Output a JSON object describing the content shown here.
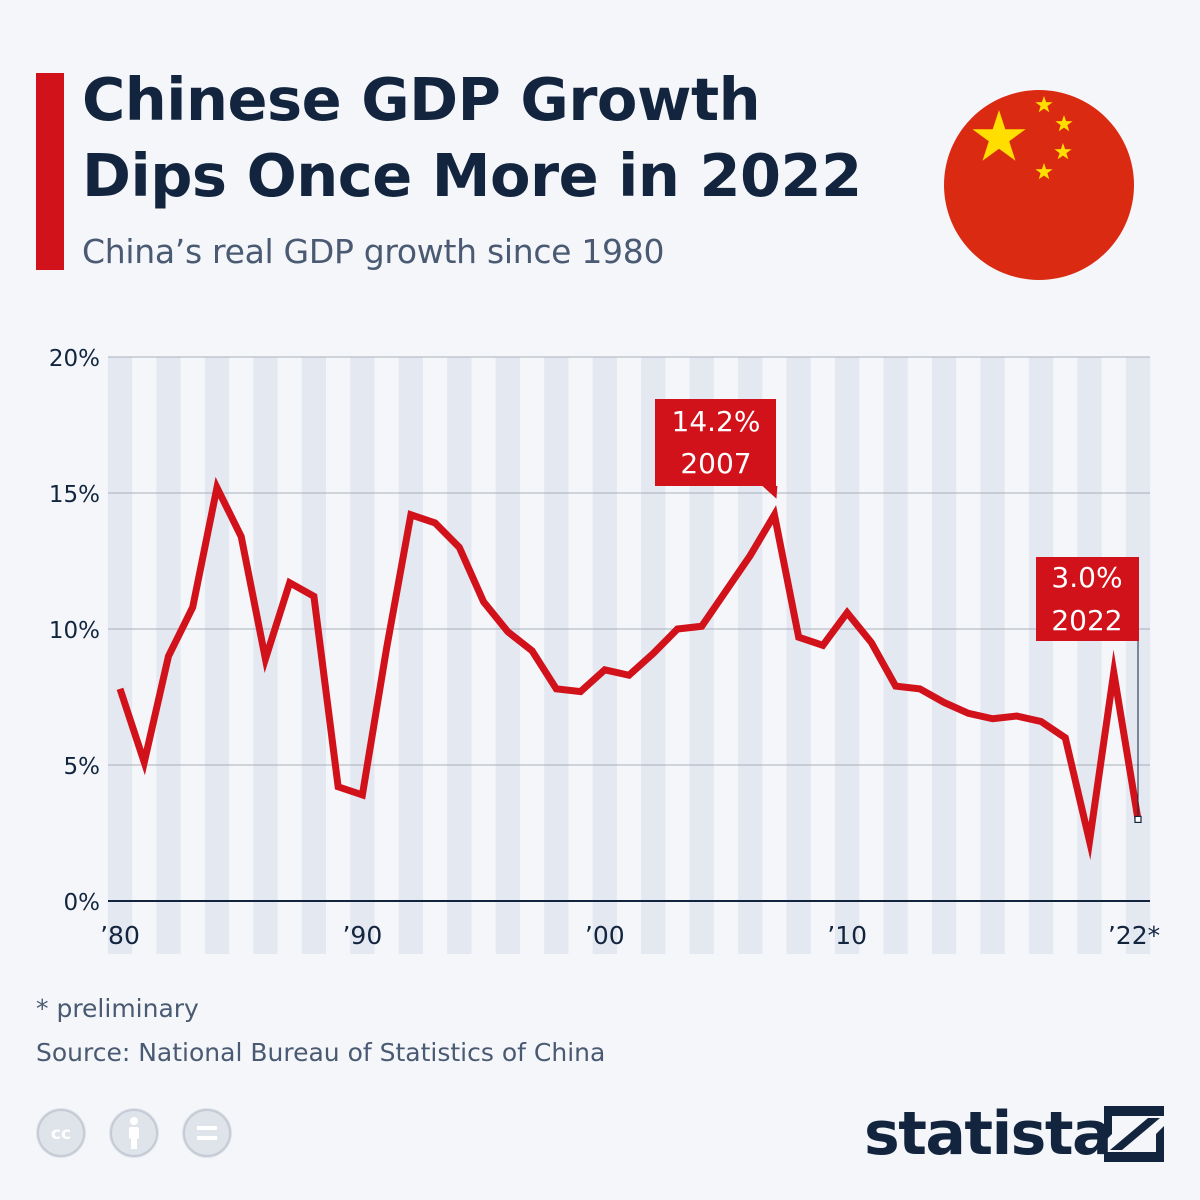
{
  "header": {
    "title_line1": "Chinese GDP Growth",
    "title_line2": "Dips Once More in 2022",
    "subtitle": "China’s real GDP growth since 1980"
  },
  "flag_icon": "china-flag-icon",
  "colors": {
    "accent": "#d2121a",
    "line": "#d2121a",
    "title": "#13253e",
    "flag_red": "#db2a12",
    "flag_star": "#ffde00",
    "band": "#e3e8f1",
    "grid": "#aab0ba"
  },
  "chart_data": {
    "type": "line",
    "title": "Chinese GDP Growth Dips Once More in 2022",
    "subtitle": "China’s real GDP growth since 1980",
    "xlabel": "",
    "ylabel": "",
    "ylim": [
      0,
      20
    ],
    "yticks": [
      "0%",
      "5%",
      "10%",
      "15%",
      "20%"
    ],
    "xticks": [
      {
        "year": 1980,
        "label": "’80"
      },
      {
        "year": 1990,
        "label": "’90"
      },
      {
        "year": 2000,
        "label": "’00"
      },
      {
        "year": 2010,
        "label": "’10"
      },
      {
        "year": 2022,
        "label": "’22*"
      }
    ],
    "grid": true,
    "x": [
      1980,
      1981,
      1982,
      1983,
      1984,
      1985,
      1986,
      1987,
      1988,
      1989,
      1990,
      1991,
      1992,
      1993,
      1994,
      1995,
      1996,
      1997,
      1998,
      1999,
      2000,
      2001,
      2002,
      2003,
      2004,
      2005,
      2006,
      2007,
      2008,
      2009,
      2010,
      2011,
      2012,
      2013,
      2014,
      2015,
      2016,
      2017,
      2018,
      2019,
      2020,
      2021,
      2022
    ],
    "values": [
      7.8,
      5.1,
      9.0,
      10.8,
      15.2,
      13.4,
      8.9,
      11.7,
      11.2,
      4.2,
      3.9,
      9.3,
      14.2,
      13.9,
      13.0,
      11.0,
      9.9,
      9.2,
      7.8,
      7.7,
      8.5,
      8.3,
      9.1,
      10.0,
      10.1,
      11.4,
      12.7,
      14.2,
      9.7,
      9.4,
      10.6,
      9.5,
      7.9,
      7.8,
      7.3,
      6.9,
      6.7,
      6.8,
      6.6,
      6.0,
      2.2,
      8.4,
      3.0
    ],
    "annotations": [
      {
        "year": 2007,
        "value": 14.2,
        "line1": "14.2%",
        "line2": "2007"
      },
      {
        "year": 2022,
        "value": 3.0,
        "line1": "3.0%",
        "line2": "2022"
      }
    ]
  },
  "footer": {
    "footnote": "* preliminary",
    "source": "Source: National Bureau of Statistics of China",
    "license_icons": [
      "cc-icon",
      "by-icon",
      "nd-icon"
    ],
    "brand": "statista"
  }
}
